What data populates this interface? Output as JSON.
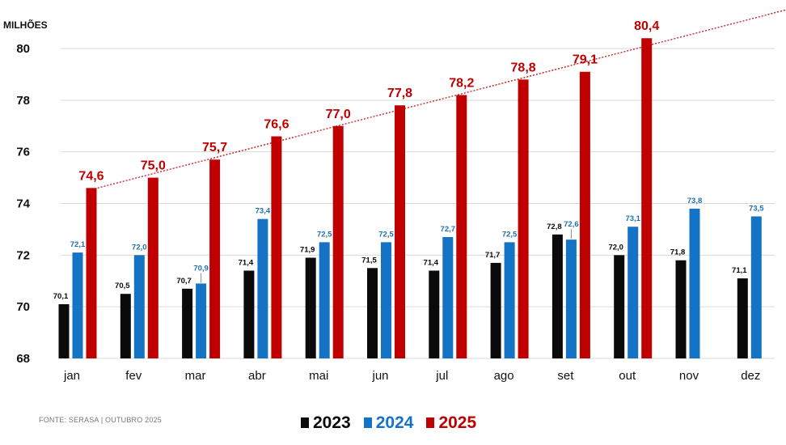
{
  "colors": {
    "s2023": "#0a0a0a",
    "s2024": "#1473c4",
    "s2025": "#c00000",
    "label2024": "#1f6fb0",
    "trend": "#c00000"
  },
  "chart_data": {
    "type": "bar",
    "title": "",
    "unit_label": "MILHÕES",
    "xlabel": "",
    "ylabel": "",
    "ylim": [
      68,
      81
    ],
    "yticks": [
      68,
      70,
      72,
      74,
      76,
      78,
      80
    ],
    "grid": true,
    "legend_position": "bottom-center",
    "categories": [
      "jan",
      "fev",
      "mar",
      "abr",
      "mai",
      "jun",
      "jul",
      "ago",
      "set",
      "out",
      "nov",
      "dez"
    ],
    "series": [
      {
        "name": "2023",
        "values": [
          70.1,
          70.5,
          70.7,
          71.4,
          71.9,
          71.5,
          71.4,
          71.7,
          72.8,
          72.0,
          71.8,
          71.1
        ],
        "labels": [
          "70,1",
          "70,5",
          "70,7",
          "71,4",
          "71,9",
          "71,5",
          "71,4",
          "71,7",
          "72,8",
          "72,0",
          "71,8",
          "71,1"
        ]
      },
      {
        "name": "2024",
        "values": [
          72.1,
          72.0,
          70.9,
          73.4,
          72.5,
          72.5,
          72.7,
          72.5,
          72.6,
          73.1,
          73.8,
          73.5
        ],
        "labels": [
          "72,1",
          "72,0",
          "70,9",
          "73,4",
          "72,5",
          "72,5",
          "72,7",
          "72,5",
          "72,6",
          "73,1",
          "73,8",
          "73,5"
        ]
      },
      {
        "name": "2025",
        "values": [
          74.6,
          75.0,
          75.7,
          76.6,
          77.0,
          77.8,
          78.2,
          78.8,
          79.1,
          80.4,
          null,
          null
        ],
        "labels": [
          "74,6",
          "75,0",
          "75,7",
          "76,6",
          "77,0",
          "77,8",
          "78,2",
          "78,8",
          "79,1",
          "80,4",
          null,
          null
        ]
      }
    ],
    "trendline": {
      "series": "2025",
      "style": "dotted"
    }
  },
  "legend": {
    "items": [
      "2023",
      "2024",
      "2025"
    ]
  },
  "source": "FONTE: SERASA | OUTUBRO 2025"
}
